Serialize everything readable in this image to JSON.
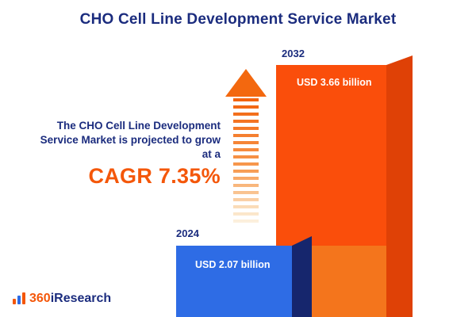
{
  "title": "CHO Cell Line Development Service Market",
  "description": {
    "line1": "The CHO Cell Line Development",
    "line2": "Service Market is projected to grow",
    "line3": "at a",
    "cagr": "CAGR 7.35%"
  },
  "logo": {
    "prefix": "360",
    "suffix": "iResearch"
  },
  "colors": {
    "navy": "#1b2c7e",
    "orange_accent": "#f4570a",
    "blue_bar": "#2e6ce5",
    "blue_bar_side": "#16266d",
    "orange_bar": "#fa4e0b",
    "orange_bar_side": "#df4106",
    "orange_bar_lower": "#f4751c",
    "arrow_orange": "#f3680f"
  },
  "chart_data": {
    "type": "bar",
    "title": "CHO Cell Line Development Service Market",
    "categories": [
      "2024",
      "2032"
    ],
    "values": [
      2.07,
      3.66
    ],
    "unit": "USD billion",
    "value_labels": [
      "USD 2.07 billion",
      "USD 3.66 billion"
    ],
    "growth_metric": "CAGR 7.35%",
    "cagr_percent": 7.35,
    "xlabel": "",
    "ylabel": "",
    "legend": "none",
    "axes": "none",
    "grid": false
  }
}
